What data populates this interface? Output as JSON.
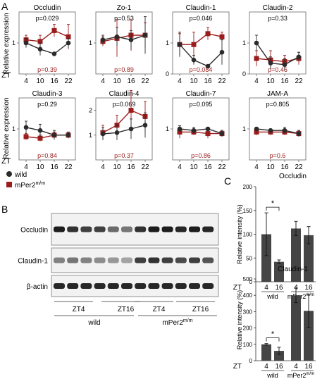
{
  "colors": {
    "wild": "#2b2b2b",
    "mutant": "#9b1c1c",
    "bar": "#454545",
    "grid": "#999999"
  },
  "panel_labels": {
    "a": "A",
    "b": "B",
    "c": "C"
  },
  "panel_a": {
    "y_label": "Relative expression",
    "x_label": "ZT",
    "legend": {
      "wild": "wild",
      "mutant_base": "mPer2",
      "mutant_sup": "m/m"
    }
  },
  "panel_b": {
    "bands": [
      "Occludin",
      "Claudin-1",
      "β-actin"
    ],
    "lanes": [
      "ZT4",
      "ZT16",
      "ZT4",
      "ZT16"
    ],
    "groups": [
      "wild",
      "mPer2"
    ],
    "group_sup": "m/m"
  },
  "panel_c": {
    "y_label": "Relative intensity (%)",
    "x_prefix": "ZT",
    "star": "*",
    "group_sup": "m/m"
  },
  "chart_data": [
    {
      "type": "line",
      "title": "Occludin",
      "x": [
        4,
        10,
        16,
        22
      ],
      "ylim": [
        0,
        2
      ],
      "yticks": [
        1
      ],
      "pval_top": "p=0.029",
      "pval_bottom": "p=0.39",
      "series": [
        {
          "name": "wild",
          "values": [
            1.0,
            0.8,
            0.65,
            1.0
          ],
          "err": [
            0.15,
            0.2,
            0.05,
            0.15
          ]
        },
        {
          "name": "mPer2 m/m",
          "values": [
            1.1,
            1.05,
            1.4,
            1.2
          ],
          "err": [
            0.15,
            0.2,
            0.2,
            0.4
          ]
        }
      ]
    },
    {
      "type": "line",
      "title": "Zo-1",
      "x": [
        4,
        10,
        16,
        22
      ],
      "ylim": [
        0,
        2
      ],
      "yticks": [
        1
      ],
      "pval_top": "p=0.53",
      "pval_bottom": "p=0.89",
      "series": [
        {
          "name": "wild",
          "values": [
            1.1,
            1.2,
            1.1,
            1.25
          ],
          "err": [
            0.15,
            0.3,
            0.3,
            0.6
          ]
        },
        {
          "name": "mPer2 m/m",
          "values": [
            1.05,
            1.15,
            1.25,
            1.25
          ],
          "err": [
            0.15,
            0.6,
            0.5,
            0.4
          ]
        }
      ]
    },
    {
      "type": "line",
      "title": "Claudin-1",
      "x": [
        4,
        10,
        16,
        22
      ],
      "ylim": [
        0,
        2
      ],
      "yticks": [
        0,
        1
      ],
      "pval_top": "p=0.046",
      "pval_bottom": "p=0.084",
      "series": [
        {
          "name": "wild",
          "values": [
            0.95,
            0.45,
            0.25,
            0.7
          ],
          "err": [
            0.4,
            0.15,
            0.05,
            0.4
          ]
        },
        {
          "name": "mPer2 m/m",
          "values": [
            0.95,
            0.95,
            1.3,
            1.2
          ],
          "err": [
            0.35,
            0.4,
            0.2,
            0.15
          ]
        }
      ]
    },
    {
      "type": "line",
      "title": "Claudin-2",
      "x": [
        4,
        10,
        16,
        22
      ],
      "ylim": [
        0,
        2
      ],
      "yticks": [
        0,
        1
      ],
      "pval_top": "p=0.33",
      "pval_bottom": "p=0.46",
      "series": [
        {
          "name": "wild",
          "values": [
            1.0,
            0.35,
            0.3,
            0.55
          ],
          "err": [
            0.25,
            0.2,
            0.2,
            0.15
          ]
        },
        {
          "name": "mPer2 m/m",
          "values": [
            0.5,
            0.45,
            0.4,
            0.5
          ],
          "err": [
            0.25,
            0.3,
            0.2,
            0.2
          ]
        }
      ]
    },
    {
      "type": "line",
      "title": "Claudin-3",
      "x": [
        4,
        10,
        16,
        22
      ],
      "ylim": [
        0,
        2
      ],
      "yticks": [
        1
      ],
      "pval_top": "p=0.29",
      "pval_bottom": "p=0.84",
      "series": [
        {
          "name": "wild",
          "values": [
            1.05,
            0.95,
            0.8,
            0.8
          ],
          "err": [
            0.2,
            0.2,
            0.15,
            0.1
          ]
        },
        {
          "name": "mPer2 m/m",
          "values": [
            0.75,
            0.7,
            0.8,
            0.8
          ],
          "err": [
            0.1,
            0.1,
            0.1,
            0.1
          ]
        }
      ]
    },
    {
      "type": "line",
      "title": "Claudin-4",
      "x": [
        4,
        10,
        16,
        22
      ],
      "ylim": [
        0,
        2.5
      ],
      "yticks": [
        1,
        2
      ],
      "pval_top": "p=0.069",
      "pval_bottom": "p=0.37",
      "series": [
        {
          "name": "wild",
          "values": [
            1.05,
            1.1,
            1.25,
            1.4
          ],
          "err": [
            0.25,
            0.3,
            0.4,
            0.5
          ]
        },
        {
          "name": "mPer2 m/m",
          "values": [
            1.1,
            1.4,
            2.0,
            1.75
          ],
          "err": [
            0.3,
            0.4,
            0.8,
            0.6
          ]
        }
      ]
    },
    {
      "type": "line",
      "title": "Claudin-7",
      "x": [
        4,
        10,
        16,
        22
      ],
      "ylim": [
        0,
        2
      ],
      "yticks": [
        1
      ],
      "pval_top": "p=0.095",
      "pval_bottom": "p=0.86",
      "series": [
        {
          "name": "wild",
          "values": [
            1.0,
            0.95,
            1.0,
            0.85
          ],
          "err": [
            0.1,
            0.1,
            0.05,
            0.1
          ]
        },
        {
          "name": "mPer2 m/m",
          "values": [
            0.9,
            0.9,
            0.85,
            0.85
          ],
          "err": [
            0.2,
            0.1,
            0.15,
            0.1
          ]
        }
      ]
    },
    {
      "type": "line",
      "title": "JAM-A",
      "x": [
        4,
        10,
        16,
        22
      ],
      "ylim": [
        0,
        2
      ],
      "yticks": [
        1
      ],
      "pval_top": "p=0.805",
      "pval_bottom": "p=0.6",
      "series": [
        {
          "name": "wild",
          "values": [
            1.0,
            0.95,
            0.95,
            0.85
          ],
          "err": [
            0.05,
            0.05,
            0.1,
            0.1
          ]
        },
        {
          "name": "mPer2 m/m",
          "values": [
            0.9,
            0.9,
            0.9,
            0.85
          ],
          "err": [
            0.1,
            0.1,
            0.1,
            0.1
          ]
        }
      ]
    },
    {
      "type": "bar",
      "title": "Occludin",
      "categories": [
        "4",
        "16",
        "4",
        "16"
      ],
      "groups": [
        "wild",
        "mPer2 m/m"
      ],
      "values": [
        100,
        42,
        112,
        98
      ],
      "err": [
        45,
        4,
        15,
        18
      ],
      "ylim": [
        0,
        200
      ],
      "yticks": [
        0,
        50,
        100,
        150,
        200
      ],
      "significance": [
        [
          0,
          1
        ]
      ]
    },
    {
      "type": "bar",
      "title": "Claudin-1",
      "categories": [
        "4",
        "16",
        "4",
        "16"
      ],
      "groups": [
        "wild",
        "mPer2 m/m"
      ],
      "values": [
        100,
        60,
        400,
        305
      ],
      "err": [
        5,
        22,
        45,
        100
      ],
      "ylim": [
        0,
        500
      ],
      "yticks": [
        0,
        100,
        200,
        300,
        400,
        500
      ],
      "significance": [
        [
          0,
          1
        ]
      ]
    }
  ]
}
